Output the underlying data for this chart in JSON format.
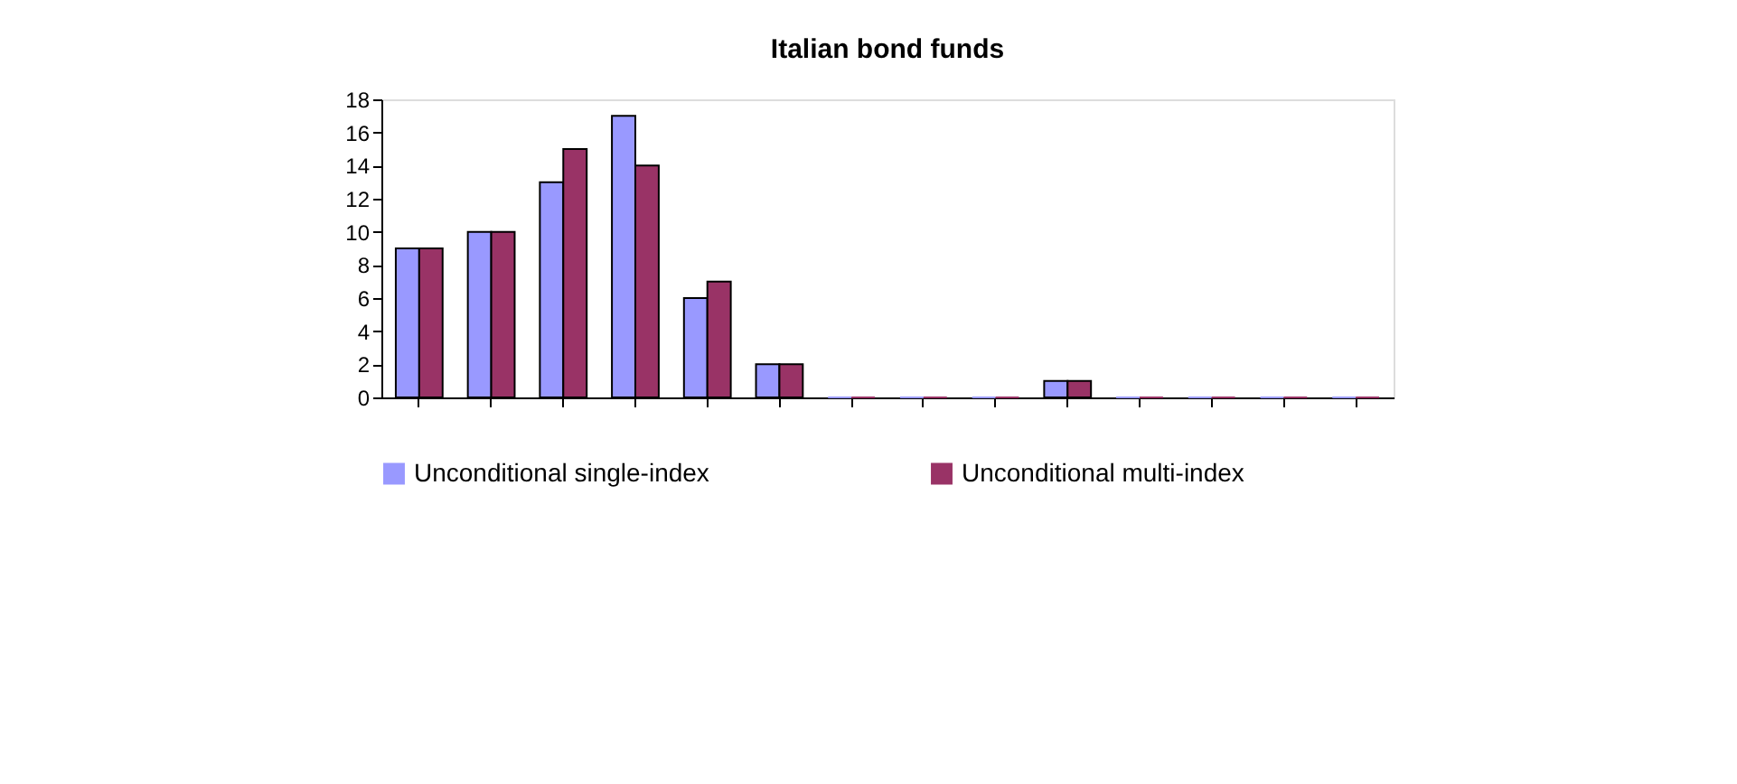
{
  "chart_data": {
    "type": "bar",
    "title": "Italian bond funds",
    "categories": [
      null,
      null,
      null,
      null,
      null,
      null,
      null,
      null,
      null,
      null,
      null,
      null,
      null,
      null
    ],
    "series": [
      {
        "name": "Unconditional single-index",
        "color": "#9999ff",
        "values": [
          9,
          10,
          13,
          17,
          6,
          2,
          0,
          0,
          0,
          1,
          0,
          0,
          0,
          0
        ]
      },
      {
        "name": "Unconditional multi-index",
        "color": "#993366",
        "values": [
          9,
          10,
          15,
          14,
          7,
          2,
          0,
          0,
          0,
          1,
          0,
          0,
          0,
          0
        ]
      }
    ],
    "ylim": [
      0,
      18
    ],
    "yticks": [
      0,
      2,
      4,
      6,
      8,
      10,
      12,
      14,
      16,
      18
    ],
    "grid": false,
    "legend": "bottom"
  }
}
